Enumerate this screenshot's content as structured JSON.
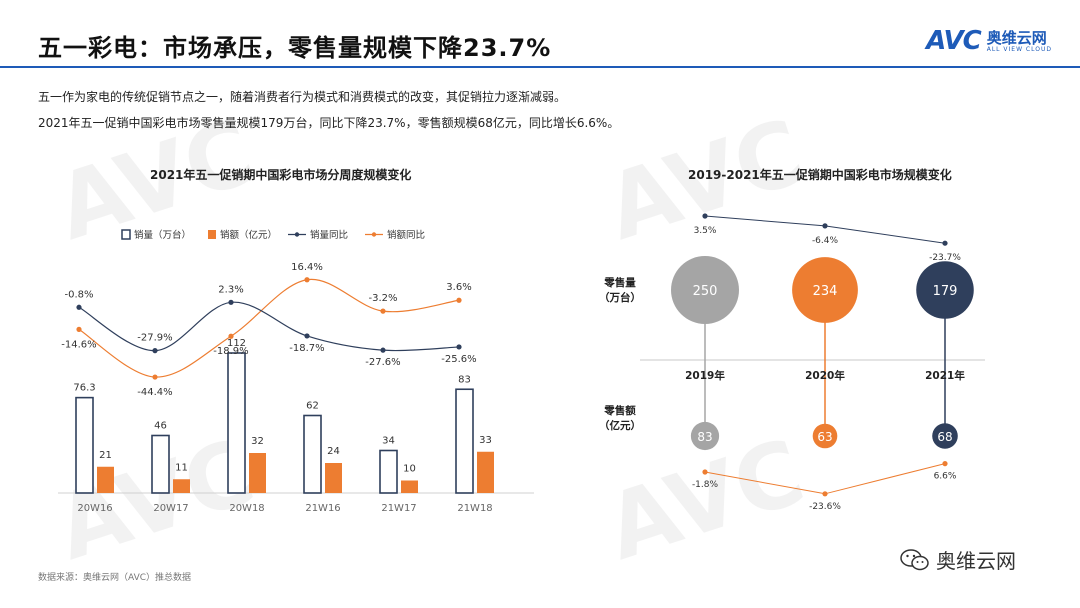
{
  "header": {
    "title": "五一彩电：市场承压，零售量规模下降23.7%",
    "logo_mark": "AVC",
    "logo_cn": "奥维云网",
    "logo_en": "ALL VIEW CLOUD"
  },
  "intro": {
    "line1": "五一作为家电的传统促销节点之一，随着消费者行为模式和消费模式的改变，其促销拉力逐渐减弱。",
    "line2": "2021年五一促销中国彩电市场零售量规模179万台，同比下降23.7%，零售额规模68亿元，同比增长6.6%。"
  },
  "colors": {
    "navy": "#2f3f5c",
    "orange": "#ed7d31",
    "gray": "#a5a5a5",
    "brand_blue": "#1e5bb8"
  },
  "source": "数据来源：奥维云网（AVC）推总数据",
  "wechat_label": "奥维云网",
  "chart_data": [
    {
      "type": "bar",
      "title": "2021年五一促销期中国彩电市场分周度规模变化",
      "categories": [
        "20W16",
        "20W17",
        "20W18",
        "21W16",
        "21W17",
        "21W18"
      ],
      "legend_position": "top",
      "series": [
        {
          "name": "销量（万台）",
          "kind": "bar",
          "style": "outline",
          "color": "#2f3f5c",
          "values": [
            76.3,
            46,
            112,
            62,
            34,
            83
          ]
        },
        {
          "name": "销额（亿元）",
          "kind": "bar",
          "style": "filled",
          "color": "#ed7d31",
          "values": [
            21,
            11,
            32,
            24,
            10,
            33
          ]
        },
        {
          "name": "销量同比",
          "kind": "line",
          "color": "#2f3f5c",
          "values": [
            -0.8,
            -27.9,
            2.3,
            -18.7,
            -27.6,
            -25.6
          ],
          "labels": [
            "-0.8%",
            "-27.9%",
            "2.3%",
            "-18.7%",
            "-27.6%",
            "-25.6%"
          ]
        },
        {
          "name": "销额同比",
          "kind": "line",
          "color": "#ed7d31",
          "values": [
            -14.6,
            -44.4,
            -18.9,
            16.4,
            -3.2,
            3.6
          ],
          "labels": [
            "-14.6%",
            "-44.4%",
            "-18.9%",
            "16.4%",
            "-3.2%",
            "3.6%"
          ]
        }
      ]
    },
    {
      "type": "scatter",
      "title": "2019-2021年五一促销期中国彩电市场规模变化",
      "years": [
        "2019年",
        "2020年",
        "2021年"
      ],
      "volume": {
        "label_line1": "零售量",
        "label_line2": "（万台）",
        "values": [
          250,
          234,
          179
        ],
        "yoy": [
          3.5,
          -6.4,
          -23.7
        ],
        "yoy_labels": [
          "3.5%",
          "-6.4%",
          "-23.7%"
        ],
        "colors": [
          "#a5a5a5",
          "#ed7d31",
          "#2f3f5c"
        ]
      },
      "revenue": {
        "label_line1": "零售额",
        "label_line2": "（亿元）",
        "values": [
          83,
          63,
          68
        ],
        "yoy": [
          -1.8,
          -23.6,
          6.6
        ],
        "yoy_labels": [
          "-1.8%",
          "-23.6%",
          "6.6%"
        ],
        "colors": [
          "#a5a5a5",
          "#ed7d31",
          "#2f3f5c"
        ]
      }
    }
  ]
}
